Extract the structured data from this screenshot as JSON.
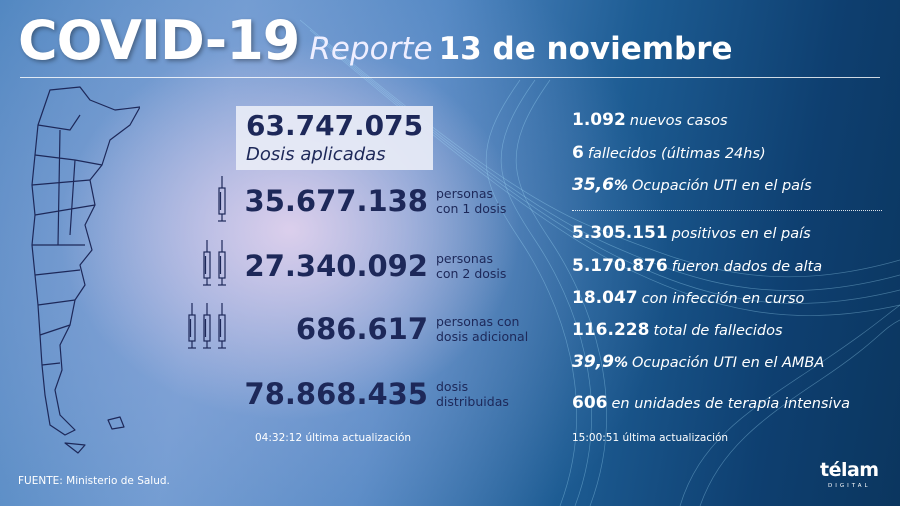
{
  "header": {
    "title": "COVID-19",
    "report_label": "Reporte",
    "date": "13 de noviembre"
  },
  "vaccines": {
    "total": {
      "value": "63.747.075",
      "label": "Dosis aplicadas"
    },
    "rows": [
      {
        "value": "35.677.138",
        "label_line1": "personas",
        "label_line2": "con 1 dosis",
        "syringes": 1
      },
      {
        "value": "27.340.092",
        "label_line1": "personas",
        "label_line2": "con 2 dosis",
        "syringes": 2
      },
      {
        "value": "686.617",
        "label_line1": "personas con",
        "label_line2": "dosis adicional",
        "syringes": 3
      },
      {
        "value": "78.868.435",
        "label_line1": "dosis",
        "label_line2": "distribuidas",
        "syringes": 0
      }
    ],
    "update_time": "04:32:12",
    "update_label": "última actualización"
  },
  "stats_daily": [
    {
      "value": "1.092",
      "label": "nuevos casos"
    },
    {
      "value": "6",
      "label": "fallecidos (últimas 24hs)"
    },
    {
      "value": "35,6",
      "suffix": "%",
      "label": "Ocupación UTI en el país"
    }
  ],
  "stats_total": [
    {
      "value": "5.305.151",
      "label": "positivos en el país"
    },
    {
      "value": "5.170.876",
      "label": "fueron dados de alta"
    },
    {
      "value": "18.047",
      "label": "con infección en curso"
    },
    {
      "value": "116.228",
      "label": "total de fallecidos"
    },
    {
      "value": "39,9",
      "suffix": "%",
      "label": "Ocupación UTI en el AMBA"
    },
    {
      "value": "606",
      "label": "en unidades de terapia intensiva"
    }
  ],
  "stats_update": {
    "time": "15:00:51",
    "label": "última actualización"
  },
  "source": "FUENTE: Ministerio de Salud.",
  "logo": {
    "name": "télam",
    "sub": "DIGITAL"
  },
  "colors": {
    "navy": "#1d2859",
    "bg_dark": "#0e3f70",
    "bg_light": "#6c9ad0"
  }
}
